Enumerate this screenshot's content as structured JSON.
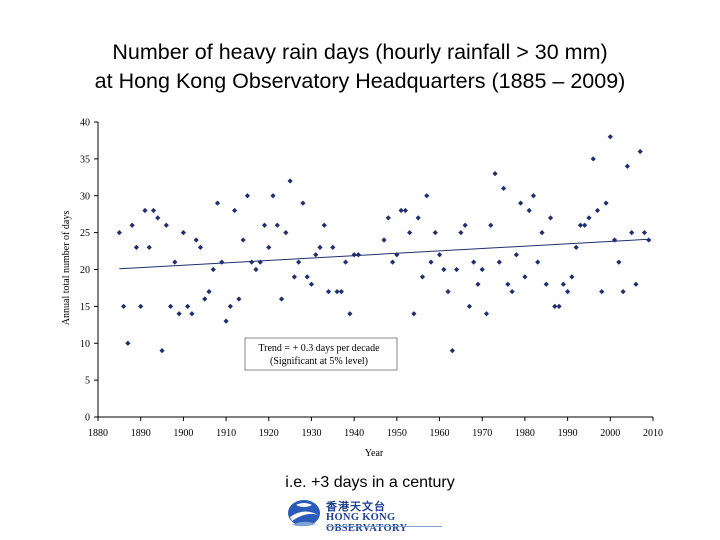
{
  "title": {
    "line1": "Number of heavy rain days (hourly rainfall > 30 mm)",
    "line2": "at Hong Kong Observatory Headquarters (1885 – 2009)"
  },
  "caption": "i.e. +3 days in a century",
  "logo": {
    "chinese": "香港天文台",
    "english": "HONG KONG OBSERVATORY"
  },
  "colors": {
    "points": "#1f2f6f",
    "trend": "#1f2f6f",
    "logo": "#1f3f8f"
  },
  "chart_data": {
    "type": "scatter",
    "title": "Number of heavy rain days (hourly rainfall > 30 mm) at Hong Kong Observatory Headquarters (1885 – 2009)",
    "xlabel": "Year",
    "ylabel": "Annual total number of days",
    "xlim": [
      1880,
      2010
    ],
    "ylim": [
      0,
      40
    ],
    "xticks": [
      1880,
      1890,
      1900,
      1910,
      1920,
      1930,
      1940,
      1950,
      1960,
      1970,
      1980,
      1990,
      2000,
      2010
    ],
    "yticks": [
      0,
      5,
      10,
      15,
      20,
      25,
      30,
      35,
      40
    ],
    "grid": false,
    "annotation": {
      "line1": "Trend = + 0.3 days per decade",
      "line2": "(Significant at 5% level)"
    },
    "trend": {
      "x": [
        1885,
        2009
      ],
      "y": [
        20.1,
        24.1
      ]
    },
    "x": [
      1885,
      1886,
      1887,
      1888,
      1889,
      1890,
      1891,
      1892,
      1893,
      1894,
      1895,
      1896,
      1897,
      1898,
      1899,
      1900,
      1901,
      1902,
      1903,
      1904,
      1905,
      1906,
      1907,
      1908,
      1909,
      1910,
      1911,
      1912,
      1913,
      1914,
      1915,
      1916,
      1917,
      1918,
      1919,
      1920,
      1921,
      1922,
      1923,
      1924,
      1925,
      1926,
      1927,
      1928,
      1929,
      1930,
      1931,
      1932,
      1933,
      1934,
      1935,
      1936,
      1937,
      1938,
      1939,
      1940,
      1941,
      1947,
      1948,
      1949,
      1950,
      1951,
      1952,
      1953,
      1954,
      1955,
      1956,
      1957,
      1958,
      1959,
      1960,
      1961,
      1962,
      1963,
      1964,
      1965,
      1966,
      1967,
      1968,
      1969,
      1970,
      1971,
      1972,
      1973,
      1974,
      1975,
      1976,
      1977,
      1978,
      1979,
      1980,
      1981,
      1982,
      1983,
      1984,
      1985,
      1986,
      1987,
      1988,
      1989,
      1990,
      1991,
      1992,
      1993,
      1994,
      1995,
      1996,
      1997,
      1998,
      1999,
      2000,
      2001,
      2002,
      2003,
      2004,
      2005,
      2006,
      2007,
      2008,
      2009
    ],
    "y": [
      25,
      15,
      10,
      26,
      23,
      15,
      28,
      23,
      28,
      27,
      9,
      26,
      15,
      21,
      14,
      25,
      15,
      14,
      24,
      23,
      16,
      17,
      20,
      29,
      21,
      13,
      15,
      28,
      16,
      24,
      30,
      21,
      20,
      21,
      26,
      23,
      30,
      26,
      16,
      25,
      32,
      19,
      21,
      29,
      19,
      18,
      22,
      23,
      26,
      17,
      23,
      17,
      17,
      21,
      14,
      22,
      22,
      24,
      27,
      21,
      22,
      28,
      28,
      25,
      14,
      27,
      19,
      30,
      21,
      25,
      22,
      20,
      17,
      9,
      20,
      25,
      26,
      15,
      21,
      18,
      20,
      14,
      26,
      33,
      21,
      31,
      18,
      17,
      22,
      29,
      19,
      28,
      30,
      21,
      25,
      18,
      27,
      15,
      15,
      18,
      17,
      19,
      23,
      26,
      26,
      27,
      35,
      28,
      17,
      29,
      38,
      24,
      21,
      17,
      34,
      25,
      18,
      36,
      25,
      24
    ]
  }
}
